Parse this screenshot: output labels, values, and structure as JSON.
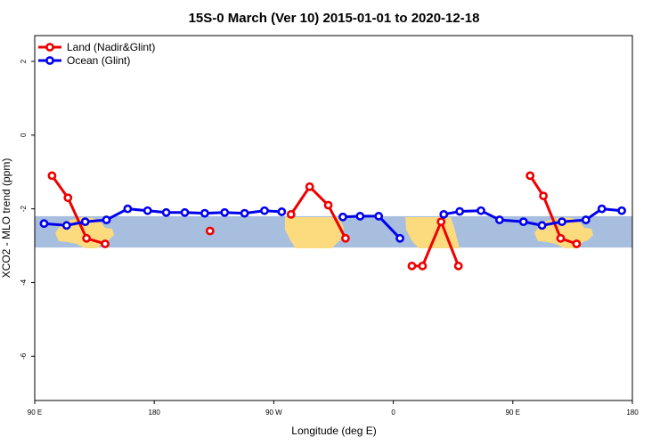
{
  "chart_data": {
    "type": "line",
    "title": "15S-0 March (Ver 10)   2015-01-01 to 2020-12-18",
    "xlabel": "Longitude (deg E)",
    "ylabel": "XCO2 - MLO trend (ppm)",
    "xlim": [
      90,
      540
    ],
    "ylim": [
      -7.2,
      2.7
    ],
    "xticks": [
      {
        "value": 90,
        "label": "90 E"
      },
      {
        "value": 180,
        "label": "180"
      },
      {
        "value": 270,
        "label": "90 W"
      },
      {
        "value": 360,
        "label": "0"
      },
      {
        "value": 450,
        "label": "90 E"
      },
      {
        "value": 540,
        "label": "180"
      }
    ],
    "yticks": [
      {
        "value": 2,
        "label": "2"
      },
      {
        "value": 0,
        "label": "0"
      },
      {
        "value": -2,
        "label": "-2"
      },
      {
        "value": -4,
        "label": "-4"
      },
      {
        "value": -6,
        "label": "-6"
      }
    ],
    "legend_position": "top-left",
    "background_map_band": {
      "y_top": -2.2,
      "y_bottom": -3.05
    },
    "series": [
      {
        "name": "Land (Nadir&Glint)",
        "color": "#ee0000",
        "segments": [
          [
            [
              103,
              -1.1
            ],
            [
              115,
              -1.7
            ],
            [
              129,
              -2.8
            ],
            [
              143,
              -2.95
            ]
          ],
          [
            [
              222,
              -2.6
            ]
          ],
          [
            [
              283,
              -2.15
            ],
            [
              297,
              -1.4
            ],
            [
              311,
              -1.9
            ],
            [
              324,
              -2.8
            ]
          ],
          [
            [
              374,
              -3.55
            ],
            [
              382,
              -3.55
            ],
            [
              396,
              -2.35
            ],
            [
              409,
              -3.55
            ]
          ],
          [
            [
              463,
              -1.1
            ],
            [
              473,
              -1.65
            ],
            [
              486,
              -2.8
            ],
            [
              498,
              -2.95
            ]
          ]
        ]
      },
      {
        "name": "Ocean (Glint)",
        "color": "#0000ee",
        "segments": [
          [
            [
              97,
              -2.4
            ],
            [
              114,
              -2.45
            ],
            [
              128,
              -2.35
            ],
            [
              144,
              -2.3
            ],
            [
              160,
              -2.0
            ],
            [
              175,
              -2.05
            ],
            [
              189,
              -2.1
            ],
            [
              203,
              -2.1
            ],
            [
              218,
              -2.12
            ],
            [
              233,
              -2.1
            ],
            [
              248,
              -2.12
            ],
            [
              263,
              -2.05
            ],
            [
              276,
              -2.08
            ]
          ],
          [
            [
              322,
              -2.22
            ],
            [
              335,
              -2.2
            ],
            [
              349,
              -2.2
            ],
            [
              365,
              -2.8
            ]
          ],
          [
            [
              398,
              -2.15
            ],
            [
              410,
              -2.07
            ],
            [
              426,
              -2.05
            ],
            [
              440,
              -2.3
            ],
            [
              458,
              -2.35
            ],
            [
              472,
              -2.45
            ],
            [
              487,
              -2.35
            ],
            [
              505,
              -2.3
            ],
            [
              517,
              -2.0
            ],
            [
              532,
              -2.05
            ]
          ]
        ]
      }
    ]
  }
}
